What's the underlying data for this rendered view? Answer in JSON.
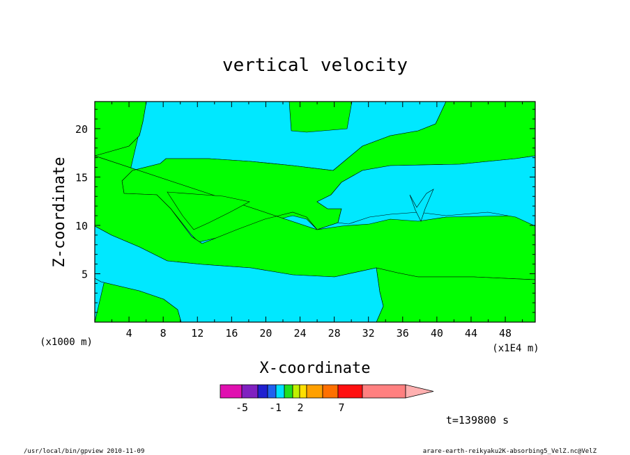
{
  "chart_data": {
    "type": "heatmap",
    "title": "vertical velocity",
    "xlabel": "X-coordinate",
    "ylabel": "Z-coordinate",
    "x_scale_note": "(x1E4 m)",
    "y_scale_note": "(x1000 m)",
    "xlim": [
      0,
      51.5
    ],
    "ylim": [
      0,
      22.8
    ],
    "x_ticks": [
      "4",
      "8",
      "12",
      "16",
      "20",
      "24",
      "28",
      "32",
      "36",
      "40",
      "44",
      "48"
    ],
    "y_ticks": [
      "5",
      "10",
      "15",
      "20"
    ],
    "time_label": "t=139800 s",
    "colorbar": {
      "colors": [
        "#e010b0",
        "#8020c0",
        "#2020d0",
        "#2060f0",
        "#00e0ff",
        "#20e020",
        "#c0f000",
        "#ffe000",
        "#ffa000",
        "#ff7000",
        "#ff1010",
        "#ff8080",
        "#ffb0b0"
      ],
      "tick_labels": [
        "-5",
        "-1",
        "2",
        "7"
      ]
    },
    "fill_colors": {
      "positive": "#00ff00",
      "negative": "#00e8ff"
    },
    "footer_left": "/usr/local/bin/gpview  2010-11-09",
    "footer_right": "arare-earth-reikyaku2K-absorbing5_VelZ.nc@VelZ"
  }
}
